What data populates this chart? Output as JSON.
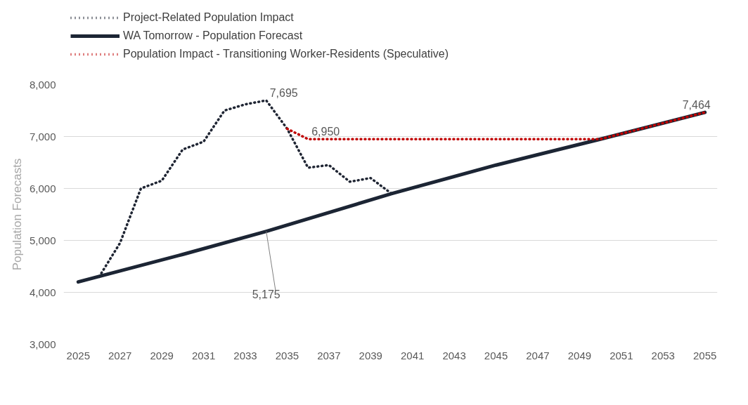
{
  "chart_data": {
    "type": "line",
    "ylabel": "Population Forecasts",
    "xlim": [
      2024.3,
      2055.6
    ],
    "xticks": [
      2025,
      2027,
      2029,
      2031,
      2033,
      2035,
      2037,
      2039,
      2041,
      2043,
      2045,
      2047,
      2049,
      2051,
      2053,
      2055
    ],
    "ylim": [
      3000,
      8000
    ],
    "yticks": [
      {
        "value": 3000,
        "label": "3,000"
      },
      {
        "value": 4000,
        "label": "4,000"
      },
      {
        "value": 5000,
        "label": "5,000"
      },
      {
        "value": 6000,
        "label": "6,000"
      },
      {
        "value": 7000,
        "label": "7,000"
      },
      {
        "value": 8000,
        "label": "8,000"
      }
    ],
    "grid": "y",
    "legend": "top left",
    "marker": "none",
    "series": [
      {
        "name": "Project-Related Population Impact",
        "color": "#1f2533",
        "line_style": "dotted",
        "x": [
          2026,
          2027,
          2028,
          2029,
          2030,
          2031,
          2032,
          2033,
          2034,
          2035,
          2036,
          2037,
          2038,
          2039,
          2040
        ],
        "values": [
          4300,
          4950,
          6000,
          6150,
          6750,
          6900,
          7500,
          7620,
          7695,
          7150,
          6400,
          6450,
          6130,
          6200,
          5900
        ]
      },
      {
        "name": "WA Tomorrow - Population Forecast",
        "color": "#1c2534",
        "line_style": "solid",
        "x": [
          2025,
          2030,
          2034,
          2040,
          2045,
          2050,
          2055
        ],
        "values": [
          4200,
          4730,
          5175,
          5900,
          6450,
          6950,
          7464
        ]
      },
      {
        "name": "Population Impact - Transitioning Worker-Residents (Speculative)",
        "color": "#c00000",
        "line_style": "dotted",
        "x": [
          2035,
          2036,
          2050,
          2055
        ],
        "values": [
          7150,
          6950,
          6950,
          7464
        ]
      }
    ],
    "annotations": [
      {
        "text": "7,695",
        "x": 2034,
        "y": 7695
      },
      {
        "text": "6,950",
        "x": 2036,
        "y": 6950
      },
      {
        "text": "5,175",
        "x": 2034,
        "y": 5175
      },
      {
        "text": "7,464",
        "x": 2055,
        "y": 7464
      }
    ]
  }
}
